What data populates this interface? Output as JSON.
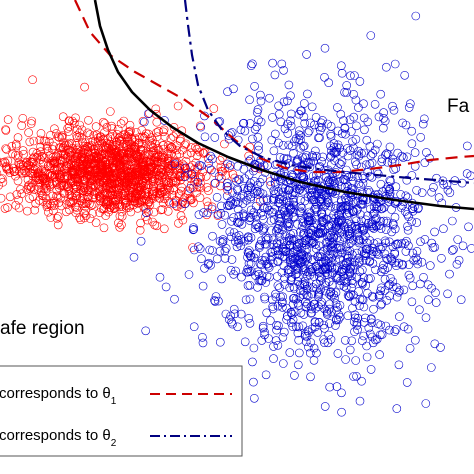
{
  "chart_data": {
    "type": "scatter",
    "title": "",
    "xlabel": "",
    "ylabel": "",
    "grid": false,
    "legend_placement": "bottom-left",
    "region_labels": {
      "failure": "Fa",
      "safe": "afe region"
    },
    "clusters": [
      {
        "color": "#ff0000",
        "center": [
          110,
          172
        ],
        "spread": [
          50,
          22
        ],
        "points": 1500,
        "marker": "open-circle"
      },
      {
        "color": "#0000cc",
        "center": [
          320,
          228
        ],
        "spread": [
          58,
          62
        ],
        "points": 1600,
        "marker": "open-circle"
      }
    ],
    "series": [
      {
        "color": "#cc0000",
        "style": "dashed",
        "label": "corresponds to θ",
        "subscript": "1",
        "x": [
          75,
          90,
          110,
          135,
          160,
          185,
          210,
          235,
          260,
          285,
          310,
          340,
          370,
          400,
          430,
          460,
          474
        ],
        "y": [
          0,
          32,
          55,
          72,
          86,
          100,
          118,
          140,
          158,
          168,
          172,
          172,
          169,
          165,
          160,
          157,
          156
        ]
      },
      {
        "color": "#000080",
        "style": "dash-dot",
        "label": "corresponds to θ",
        "subscript": "2",
        "x": [
          185,
          188,
          192,
          198,
          208,
          222,
          240,
          262,
          290,
          325,
          365,
          410,
          474
        ],
        "y": [
          0,
          25,
          55,
          85,
          110,
          130,
          146,
          157,
          165,
          170,
          174,
          178,
          183
        ]
      },
      {
        "color": "#000000",
        "style": "solid",
        "label": "",
        "subscript": "",
        "x": [
          95,
          100,
          108,
          118,
          132,
          150,
          172,
          198,
          228,
          262,
          300,
          345,
          395,
          440,
          474
        ],
        "y": [
          0,
          26,
          50,
          72,
          92,
          110,
          127,
          143,
          157,
          170,
          182,
          192,
          200,
          206,
          209
        ]
      }
    ]
  }
}
